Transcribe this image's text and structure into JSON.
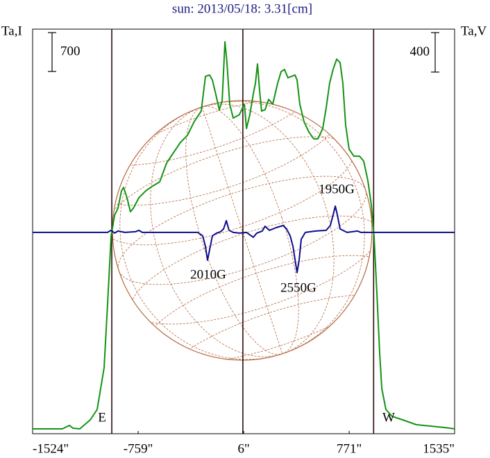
{
  "chart_data": {
    "type": "line",
    "title": "sun: 2013/05/18: 3.31[cm]",
    "ylabel": "Ta,I",
    "y2label": "Ta,V",
    "xlim": [
      -1524,
      1535
    ],
    "xticks": [
      {
        "value": -1524,
        "label": "-1524\""
      },
      {
        "value": -759,
        "label": "-759\""
      },
      {
        "value": 6,
        "label": "6\""
      },
      {
        "value": 771,
        "label": "771\""
      },
      {
        "value": 1535,
        "label": "1535\""
      }
    ],
    "ylim": [
      0,
      7290
    ],
    "y2lim": [
      -2040,
      2060
    ],
    "vlines": [
      -950,
      0,
      948
    ],
    "scale_bars": [
      {
        "value": 700
      },
      {
        "value": 400,
        "axis": "y2"
      }
    ],
    "annotations": [
      {
        "text": "E"
      },
      {
        "text": "W"
      },
      {
        "text": "2010G"
      },
      {
        "text": "2550G"
      },
      {
        "text": "1950G"
      }
    ],
    "series": [
      {
        "color": "#139313",
        "x": [
          -1524,
          -1308,
          -1257,
          -1232,
          -1182,
          -1106,
          -1056,
          -1006,
          -981,
          -955,
          -930,
          -905,
          -880,
          -865,
          -840,
          -815,
          -794,
          -754,
          -704,
          -654,
          -603,
          -553,
          -503,
          -452,
          -402,
          -352,
          -302,
          -271,
          -241,
          -221,
          -191,
          -171,
          -150,
          -130,
          -115,
          -95,
          -70,
          -25,
          11,
          26,
          51,
          76,
          91,
          106,
          121,
          136,
          161,
          187,
          217,
          252,
          277,
          302,
          327,
          353,
          378,
          393,
          413,
          443,
          478,
          514,
          544,
          579,
          604,
          629,
          654,
          680,
          705,
          725,
          745,
          770,
          805,
          846,
          876,
          906,
          931,
          951,
          971,
          992,
          1007,
          1037,
          1082,
          1158,
          1258,
          1359,
          1459,
          1535
        ],
        "values": [
          88,
          88,
          150,
          100,
          88,
          250,
          438,
          1188,
          2313,
          3563,
          3938,
          4063,
          4375,
          4438,
          4250,
          4000,
          4063,
          4250,
          4375,
          4463,
          4538,
          4875,
          5063,
          5250,
          5375,
          5625,
          5813,
          6438,
          6463,
          6375,
          6063,
          5838,
          6000,
          7063,
          6688,
          5938,
          5688,
          5750,
          5938,
          5500,
          5750,
          6125,
          6313,
          6663,
          6188,
          5813,
          5838,
          6025,
          5938,
          6313,
          6525,
          6563,
          6413,
          6438,
          6463,
          6375,
          5938,
          5625,
          5438,
          5313,
          5313,
          5500,
          5875,
          6313,
          6563,
          6750,
          6688,
          6313,
          5563,
          5125,
          5000,
          5000,
          4913,
          4563,
          4125,
          3563,
          2563,
          1438,
          813,
          438,
          313,
          250,
          163,
          138,
          113,
          88
        ]
      },
      {
        "color": "#0c0c8c",
        "axis": "y2",
        "x": [
          -1524,
          -981,
          -955,
          -930,
          -905,
          -855,
          -779,
          -754,
          -729,
          -327,
          -291,
          -271,
          -256,
          -241,
          -221,
          -191,
          -161,
          -140,
          -120,
          -100,
          -70,
          -25,
          26,
          76,
          101,
          141,
          161,
          192,
          242,
          292,
          317,
          343,
          363,
          383,
          393,
          408,
          423,
          453,
          529,
          604,
          634,
          654,
          670,
          685,
          705,
          755,
          831,
          856,
          956,
          1535
        ],
        "values": [
          0,
          0,
          21,
          -7,
          14,
          0,
          7,
          21,
          0,
          0,
          -35,
          -141,
          -282,
          -176,
          -35,
          -7,
          7,
          35,
          120,
          21,
          0,
          -7,
          0,
          -49,
          -7,
          14,
          63,
          21,
          49,
          70,
          35,
          -35,
          -141,
          -316,
          -408,
          -281,
          -70,
          0,
          14,
          21,
          70,
          176,
          267,
          176,
          35,
          0,
          14,
          0,
          0,
          0
        ]
      }
    ]
  }
}
